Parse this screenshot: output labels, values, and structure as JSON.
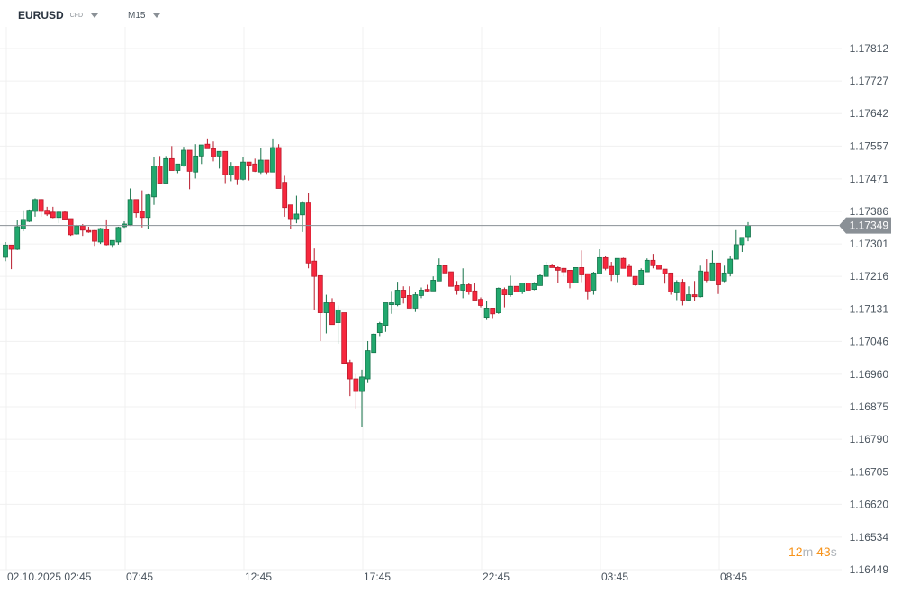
{
  "header": {
    "symbol": "EURUSD",
    "instrument_type": "CFD",
    "timeframe": "M15"
  },
  "countdown": {
    "minutes": "12",
    "minutes_unit": "m",
    "seconds": "43",
    "seconds_unit": "s"
  },
  "colors": {
    "up": "#22a86e",
    "up_border": "#16734a",
    "down": "#f7283e",
    "down_border": "#b81b2c",
    "price_line": "#8a9096",
    "grid": "#f0f0f0"
  },
  "chart_data": {
    "type": "candlestick",
    "title": "EURUSD M15",
    "ylim": [
      1.16449,
      1.17812
    ],
    "y_ticks": [
      "1.17812",
      "1.17727",
      "1.17642",
      "1.17557",
      "1.17471",
      "1.17386",
      "1.17301",
      "1.17216",
      "1.17131",
      "1.17046",
      "1.16960",
      "1.16875",
      "1.16790",
      "1.16705",
      "1.16620",
      "1.16534",
      "1.16449"
    ],
    "x_labels": [
      {
        "index": 0,
        "label": "02.10.2025  02:45"
      },
      {
        "index": 20,
        "label": "07:45"
      },
      {
        "index": 40,
        "label": "12:45"
      },
      {
        "index": 60,
        "label": "17:45"
      },
      {
        "index": 80,
        "label": "22:45"
      },
      {
        "index": 100,
        "label": "03:45"
      },
      {
        "index": 120,
        "label": "08:45"
      }
    ],
    "current_price": "1.17349",
    "grid": true,
    "ohlc": [
      [
        1.17266,
        1.17306,
        1.17256,
        1.17298
      ],
      [
        1.17298,
        1.17298,
        1.17235,
        1.17287
      ],
      [
        1.17287,
        1.17363,
        1.17285,
        1.17346
      ],
      [
        1.17341,
        1.17389,
        1.17334,
        1.17365
      ],
      [
        1.1736,
        1.17391,
        1.17358,
        1.17389
      ],
      [
        1.17386,
        1.1742,
        1.17372,
        1.17417
      ],
      [
        1.17417,
        1.17419,
        1.17372,
        1.17386
      ],
      [
        1.17389,
        1.17398,
        1.17374,
        1.17379
      ],
      [
        1.17384,
        1.17398,
        1.17368,
        1.1737
      ],
      [
        1.1737,
        1.17386,
        1.17355,
        1.17384
      ],
      [
        1.17384,
        1.17386,
        1.17363,
        1.17365
      ],
      [
        1.17367,
        1.17367,
        1.17322,
        1.17325
      ],
      [
        1.17327,
        1.17351,
        1.17325,
        1.17348
      ],
      [
        1.17348,
        1.17353,
        1.17322,
        1.17337
      ],
      [
        1.17336,
        1.17346,
        1.1733,
        1.17332
      ],
      [
        1.17336,
        1.17337,
        1.17296,
        1.17308
      ],
      [
        1.17306,
        1.17343,
        1.17301,
        1.17341
      ],
      [
        1.17339,
        1.17365,
        1.17297,
        1.17299
      ],
      [
        1.17299,
        1.1731,
        1.17291,
        1.1731
      ],
      [
        1.17306,
        1.17346,
        1.17299,
        1.17344
      ],
      [
        1.17346,
        1.1736,
        1.17343,
        1.17353
      ],
      [
        1.17351,
        1.17446,
        1.17348,
        1.17417
      ],
      [
        1.17417,
        1.17417,
        1.1737,
        1.17382
      ],
      [
        1.17386,
        1.17441,
        1.17344,
        1.1737
      ],
      [
        1.1737,
        1.17431,
        1.17339,
        1.17429
      ],
      [
        1.17424,
        1.17529,
        1.17403,
        1.17505
      ],
      [
        1.17505,
        1.17531,
        1.1746,
        1.1746
      ],
      [
        1.1746,
        1.17531,
        1.1746,
        1.17524
      ],
      [
        1.17524,
        1.17557,
        1.17493,
        1.17493
      ],
      [
        1.17493,
        1.1751,
        1.17486,
        1.1751
      ],
      [
        1.17505,
        1.17555,
        1.17503,
        1.17546
      ],
      [
        1.17546,
        1.17546,
        1.17444,
        1.17491
      ],
      [
        1.17489,
        1.17562,
        1.17472,
        1.17531
      ],
      [
        1.17531,
        1.1756,
        1.1751,
        1.1756
      ],
      [
        1.17562,
        1.17577,
        1.1755,
        1.1755
      ],
      [
        1.1755,
        1.17569,
        1.17517,
        1.17529
      ],
      [
        1.17531,
        1.17543,
        1.17498,
        1.17543
      ],
      [
        1.17543,
        1.17543,
        1.1746,
        1.17482
      ],
      [
        1.17482,
        1.17515,
        1.17465,
        1.17505
      ],
      [
        1.17505,
        1.17505,
        1.17455,
        1.1747
      ],
      [
        1.1747,
        1.17529,
        1.17467,
        1.17515
      ],
      [
        1.17515,
        1.17515,
        1.17467,
        1.17507
      ],
      [
        1.1751,
        1.17524,
        1.17489,
        1.17491
      ],
      [
        1.17489,
        1.17553,
        1.17484,
        1.1752
      ],
      [
        1.1752,
        1.1752,
        1.17484,
        1.17489
      ],
      [
        1.17489,
        1.17577,
        1.17489,
        1.17553
      ],
      [
        1.17553,
        1.17562,
        1.17446,
        1.17446
      ],
      [
        1.17462,
        1.17479,
        1.17372,
        1.17396
      ],
      [
        1.17403,
        1.17403,
        1.17339,
        1.17367
      ],
      [
        1.17367,
        1.17427,
        1.17355,
        1.17379
      ],
      [
        1.17377,
        1.17413,
        1.17332,
        1.17408
      ],
      [
        1.17408,
        1.17434,
        1.17237,
        1.17251
      ],
      [
        1.17256,
        1.17289,
        1.17128,
        1.17216
      ],
      [
        1.17218,
        1.17218,
        1.17047,
        1.17121
      ],
      [
        1.17121,
        1.17168,
        1.17067,
        1.17147
      ],
      [
        1.17147,
        1.17159,
        1.1709,
        1.1709
      ],
      [
        1.17095,
        1.1714,
        1.1704,
        1.17128
      ],
      [
        1.17121,
        1.17121,
        1.16986,
        1.16989
      ],
      [
        1.16991,
        1.16998,
        1.16903,
        1.16948
      ],
      [
        1.16948,
        1.1696,
        1.1687,
        1.16915
      ],
      [
        1.16915,
        1.16972,
        1.16823,
        1.16953
      ],
      [
        1.16948,
        1.17047,
        1.16937,
        1.17022
      ],
      [
        1.17017,
        1.17067,
        1.17017,
        1.17065
      ],
      [
        1.17069,
        1.17097,
        1.1706,
        1.17093
      ],
      [
        1.17088,
        1.17147,
        1.17071,
        1.17147
      ],
      [
        1.17142,
        1.17178,
        1.17118,
        1.17147
      ],
      [
        1.17142,
        1.17202,
        1.17138,
        1.1718
      ],
      [
        1.1718,
        1.1719,
        1.17145,
        1.17161
      ],
      [
        1.17166,
        1.1719,
        1.17133,
        1.17133
      ],
      [
        1.17133,
        1.17175,
        1.17123,
        1.17168
      ],
      [
        1.17166,
        1.17187,
        1.17159,
        1.1718
      ],
      [
        1.17182,
        1.17194,
        1.17175,
        1.17178
      ],
      [
        1.17178,
        1.17216,
        1.17178,
        1.17206
      ],
      [
        1.17204,
        1.17263,
        1.17204,
        1.17244
      ],
      [
        1.17244,
        1.17246,
        1.17225,
        1.17225
      ],
      [
        1.17228,
        1.17228,
        1.1719,
        1.1719
      ],
      [
        1.17192,
        1.17204,
        1.17168,
        1.1718
      ],
      [
        1.1718,
        1.17237,
        1.17159,
        1.17194
      ],
      [
        1.17194,
        1.17199,
        1.17168,
        1.17175
      ],
      [
        1.17178,
        1.17199,
        1.17154,
        1.17154
      ],
      [
        1.17156,
        1.17161,
        1.17135,
        1.1714
      ],
      [
        1.17109,
        1.17152,
        1.17102,
        1.17133
      ],
      [
        1.17133,
        1.17133,
        1.17107,
        1.17118
      ],
      [
        1.17121,
        1.17187,
        1.17118,
        1.17185
      ],
      [
        1.17182,
        1.17187,
        1.17135,
        1.17168
      ],
      [
        1.17168,
        1.17218,
        1.17163,
        1.1719
      ],
      [
        1.1719,
        1.1719,
        1.17175,
        1.17175
      ],
      [
        1.17175,
        1.17199,
        1.1717,
        1.17199
      ],
      [
        1.17199,
        1.17199,
        1.1718,
        1.1718
      ],
      [
        1.17182,
        1.17201,
        1.1718,
        1.17197
      ],
      [
        1.17192,
        1.17223,
        1.17192,
        1.17218
      ],
      [
        1.17216,
        1.17254,
        1.17216,
        1.17244
      ],
      [
        1.17244,
        1.17249,
        1.17239,
        1.17239
      ],
      [
        1.17239,
        1.17242,
        1.17199,
        1.17232
      ],
      [
        1.17237,
        1.17239,
        1.17216,
        1.17228
      ],
      [
        1.17232,
        1.17232,
        1.17185,
        1.17199
      ],
      [
        1.17199,
        1.17239,
        1.17199,
        1.17239
      ],
      [
        1.17239,
        1.17284,
        1.17201,
        1.1722
      ],
      [
        1.17223,
        1.17223,
        1.17156,
        1.17178
      ],
      [
        1.1718,
        1.17228,
        1.17168,
        1.17225
      ],
      [
        1.17223,
        1.17287,
        1.17223,
        1.17265
      ],
      [
        1.17265,
        1.1727,
        1.17232,
        1.17237
      ],
      [
        1.17242,
        1.17254,
        1.17204,
        1.1722
      ],
      [
        1.1722,
        1.17263,
        1.17201,
        1.17263
      ],
      [
        1.17263,
        1.17265,
        1.17237,
        1.17237
      ],
      [
        1.17242,
        1.17249,
        1.17216,
        1.17216
      ],
      [
        1.17216,
        1.17216,
        1.17192,
        1.17194
      ],
      [
        1.17194,
        1.17237,
        1.17194,
        1.17232
      ],
      [
        1.17228,
        1.17263,
        1.17228,
        1.17258
      ],
      [
        1.17258,
        1.17275,
        1.17237,
        1.17244
      ],
      [
        1.17246,
        1.17246,
        1.17235,
        1.17235
      ],
      [
        1.17235,
        1.17235,
        1.17197,
        1.17223
      ],
      [
        1.17225,
        1.17225,
        1.17168,
        1.17175
      ],
      [
        1.17173,
        1.17206,
        1.17154,
        1.17201
      ],
      [
        1.17201,
        1.17209,
        1.1714,
        1.17154
      ],
      [
        1.17154,
        1.1719,
        1.17151,
        1.17168
      ],
      [
        1.17168,
        1.17204,
        1.17151,
        1.17163
      ],
      [
        1.17163,
        1.17244,
        1.17161,
        1.1723
      ],
      [
        1.17228,
        1.17261,
        1.17201,
        1.17206
      ],
      [
        1.17206,
        1.17284,
        1.17206,
        1.17251
      ],
      [
        1.17251,
        1.17251,
        1.1717,
        1.17194
      ],
      [
        1.17204,
        1.17244,
        1.17201,
        1.17225
      ],
      [
        1.17225,
        1.1727,
        1.17216,
        1.17261
      ],
      [
        1.17261,
        1.17337,
        1.17261,
        1.17299
      ],
      [
        1.17299,
        1.17318,
        1.1728,
        1.17318
      ],
      [
        1.1732,
        1.17358,
        1.17308,
        1.17349
      ]
    ]
  }
}
